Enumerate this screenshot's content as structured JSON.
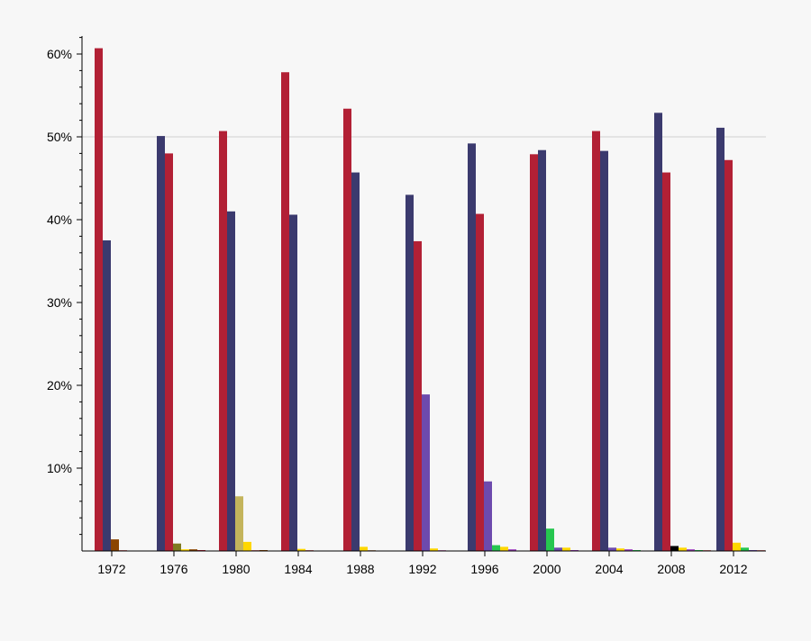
{
  "chart_data": {
    "type": "bar",
    "title": "",
    "xlabel": "",
    "ylabel": "",
    "ylim": [
      0,
      62
    ],
    "yticks": [
      "10%",
      "20%",
      "30%",
      "40%",
      "50%",
      "60%"
    ],
    "grid": "single line at 50%",
    "legend": "none",
    "categories": [
      "1972",
      "1976",
      "1980",
      "1984",
      "1988",
      "1992",
      "1996",
      "2000",
      "2004",
      "2008",
      "2012"
    ],
    "groups": [
      {
        "year": "1972",
        "bars": [
          {
            "value": 60.7,
            "color": "#b22035"
          },
          {
            "value": 37.5,
            "color": "#3b3a6e"
          },
          {
            "value": 1.4,
            "color": "#8b4500"
          },
          {
            "value": 0.1,
            "color": "#d08080"
          }
        ]
      },
      {
        "year": "1976",
        "bars": [
          {
            "value": 50.1,
            "color": "#3b3a6e"
          },
          {
            "value": 48.0,
            "color": "#b22035"
          },
          {
            "value": 0.9,
            "color": "#7f7a20"
          },
          {
            "value": 0.2,
            "color": "#ffd700"
          },
          {
            "value": 0.2,
            "color": "#8b4500"
          },
          {
            "value": 0.1,
            "color": "#b22035"
          }
        ]
      },
      {
        "year": "1980",
        "bars": [
          {
            "value": 50.7,
            "color": "#b22035"
          },
          {
            "value": 41.0,
            "color": "#3b3a6e"
          },
          {
            "value": 6.6,
            "color": "#c4b45c"
          },
          {
            "value": 1.1,
            "color": "#ffd700"
          },
          {
            "value": 0.1,
            "color": "#d08080"
          },
          {
            "value": 0.1,
            "color": "#8b4500"
          }
        ]
      },
      {
        "year": "1984",
        "bars": [
          {
            "value": 57.8,
            "color": "#b22035"
          },
          {
            "value": 40.6,
            "color": "#3b3a6e"
          },
          {
            "value": 0.25,
            "color": "#ffd700"
          },
          {
            "value": 0.1,
            "color": "#d08080"
          }
        ]
      },
      {
        "year": "1988",
        "bars": [
          {
            "value": 53.4,
            "color": "#b22035"
          },
          {
            "value": 45.7,
            "color": "#3b3a6e"
          },
          {
            "value": 0.5,
            "color": "#ffd700"
          },
          {
            "value": 0.1,
            "color": "#c0a080"
          }
        ]
      },
      {
        "year": "1992",
        "bars": [
          {
            "value": 43.0,
            "color": "#3b3a6e"
          },
          {
            "value": 37.4,
            "color": "#b22035"
          },
          {
            "value": 18.9,
            "color": "#6d4aad"
          },
          {
            "value": 0.3,
            "color": "#ffd700"
          },
          {
            "value": 0.1,
            "color": "#d090c0"
          }
        ]
      },
      {
        "year": "1996",
        "bars": [
          {
            "value": 49.2,
            "color": "#3b3a6e"
          },
          {
            "value": 40.7,
            "color": "#b22035"
          },
          {
            "value": 8.4,
            "color": "#6d4aad"
          },
          {
            "value": 0.7,
            "color": "#26c64f"
          },
          {
            "value": 0.5,
            "color": "#ffd700"
          },
          {
            "value": 0.2,
            "color": "#a040c0"
          }
        ]
      },
      {
        "year": "2000",
        "bars": [
          {
            "value": 47.9,
            "color": "#b22035"
          },
          {
            "value": 48.4,
            "color": "#3b3a6e"
          },
          {
            "value": 2.7,
            "color": "#26c64f"
          },
          {
            "value": 0.4,
            "color": "#6d4aad"
          },
          {
            "value": 0.4,
            "color": "#ffd700"
          },
          {
            "value": 0.1,
            "color": "#a040c0"
          }
        ]
      },
      {
        "year": "2004",
        "bars": [
          {
            "value": 50.7,
            "color": "#b22035"
          },
          {
            "value": 48.3,
            "color": "#3b3a6e"
          },
          {
            "value": 0.4,
            "color": "#6d4aad"
          },
          {
            "value": 0.3,
            "color": "#ffd700"
          },
          {
            "value": 0.2,
            "color": "#a040c0"
          },
          {
            "value": 0.1,
            "color": "#26c64f"
          }
        ]
      },
      {
        "year": "2008",
        "bars": [
          {
            "value": 52.9,
            "color": "#3b3a6e"
          },
          {
            "value": 45.7,
            "color": "#b22035"
          },
          {
            "value": 0.6,
            "color": "#000000"
          },
          {
            "value": 0.4,
            "color": "#ffd700"
          },
          {
            "value": 0.2,
            "color": "#a040c0"
          },
          {
            "value": 0.1,
            "color": "#26c64f"
          },
          {
            "value": 0.1,
            "color": "#d08080"
          }
        ]
      },
      {
        "year": "2012",
        "bars": [
          {
            "value": 51.1,
            "color": "#3b3a6e"
          },
          {
            "value": 47.2,
            "color": "#b22035"
          },
          {
            "value": 1.0,
            "color": "#ffd700"
          },
          {
            "value": 0.4,
            "color": "#26c64f"
          },
          {
            "value": 0.1,
            "color": "#6d4aad"
          },
          {
            "value": 0.05,
            "color": "#d08080"
          }
        ]
      }
    ]
  }
}
